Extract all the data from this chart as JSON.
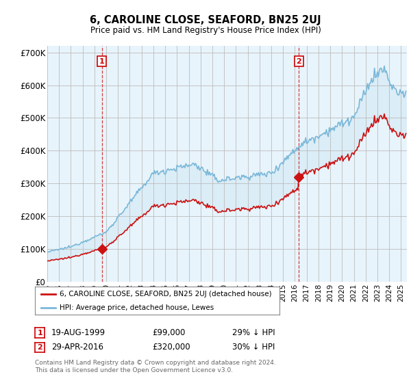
{
  "title": "6, CAROLINE CLOSE, SEAFORD, BN25 2UJ",
  "subtitle": "Price paid vs. HM Land Registry's House Price Index (HPI)",
  "ylim": [
    0,
    720000
  ],
  "yticks": [
    0,
    100000,
    200000,
    300000,
    400000,
    500000,
    600000,
    700000
  ],
  "ytick_labels": [
    "£0",
    "£100K",
    "£200K",
    "£300K",
    "£400K",
    "£500K",
    "£600K",
    "£700K"
  ],
  "hpi_color": "#7ab8d9",
  "hpi_fill_color": "#d0e8f5",
  "price_color": "#cc1111",
  "dashed_color": "#cc1111",
  "background_color": "#ffffff",
  "plot_bg_color": "#e8f4fb",
  "grid_color": "#bbbbbb",
  "sale1_x": 1999.63,
  "sale1_y": 99000,
  "sale2_x": 2016.33,
  "sale2_y": 320000,
  "legend_text1": "6, CAROLINE CLOSE, SEAFORD, BN25 2UJ (detached house)",
  "legend_text2": "HPI: Average price, detached house, Lewes",
  "table_row1": [
    "1",
    "19-AUG-1999",
    "£99,000",
    "29% ↓ HPI"
  ],
  "table_row2": [
    "2",
    "29-APR-2016",
    "£320,000",
    "30% ↓ HPI"
  ],
  "footnote": "Contains HM Land Registry data © Crown copyright and database right 2024.\nThis data is licensed under the Open Government Licence v3.0.",
  "xmin": 1995.0,
  "xmax": 2025.5
}
